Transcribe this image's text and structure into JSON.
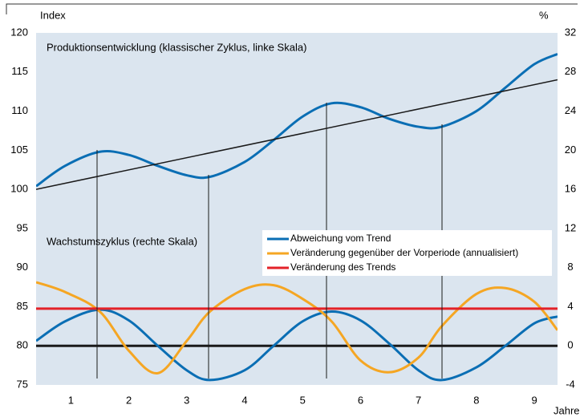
{
  "chart_data": {
    "type": "line",
    "y_label": "Index",
    "y2_label": "%",
    "x_label": "Jahre",
    "annotations": [
      "Produktionsentwicklung (klassischer Zyklus, linke Skala)",
      "Wachstumszyklus (rechte Skala)"
    ],
    "x": [
      0.4,
      0.9,
      1.5,
      2.0,
      2.5,
      3.0,
      3.4,
      4.0,
      4.5,
      5.0,
      5.5,
      6.0,
      6.5,
      7.0,
      7.4,
      8.0,
      8.5,
      9.0,
      9.4
    ],
    "xlim": [
      0.4,
      9.4
    ],
    "xticks": [
      1,
      2,
      3,
      4,
      5,
      6,
      7,
      8,
      9
    ],
    "ylim": [
      75,
      120
    ],
    "yticks": [
      75,
      80,
      85,
      90,
      95,
      100,
      105,
      110,
      115,
      120
    ],
    "y2lim": [
      -4,
      32
    ],
    "y2ticks": [
      -4,
      0,
      4,
      8,
      12,
      16,
      20,
      24,
      28,
      32
    ],
    "zero_line": true,
    "grid": false,
    "series": [
      {
        "color": "#0a6eb4",
        "values": [
          100.4,
          103.0,
          104.8,
          104.4,
          103.0,
          101.8,
          101.6,
          103.5,
          106.3,
          109.3,
          111.0,
          110.5,
          109.0,
          108.0,
          108.0,
          110.0,
          113.0,
          116.0,
          117.3
        ]
      },
      {
        "color": "#1a1a1a",
        "x": [
          0.4,
          9.4
        ],
        "values": [
          100,
          114
        ]
      },
      {
        "name": "Abweichung vom Trend",
        "color": "#0a6eb4",
        "axis": "y2",
        "values": [
          0.5,
          2.5,
          3.7,
          2.6,
          0,
          -2.5,
          -3.5,
          -2.5,
          0,
          2.5,
          3.5,
          2.6,
          0.2,
          -2.5,
          -3.5,
          -2.2,
          0,
          2.3,
          3
        ]
      },
      {
        "name": "Veränderung gegenüber der Vorperiode (annualisiert)",
        "color": "#f5a623",
        "axis": "y2",
        "values": [
          6.5,
          5.5,
          3.5,
          -0.5,
          -2.8,
          0.5,
          3.5,
          5.8,
          6.2,
          4.8,
          2.5,
          -1.5,
          -2.7,
          -1.2,
          2.0,
          5.3,
          5.9,
          4.5,
          1.6
        ]
      },
      {
        "name": "Veränderung des Trends",
        "color": "#e32228",
        "axis": "y2",
        "x": [
          0.4,
          9.4
        ],
        "values": [
          3.8,
          3.8
        ]
      }
    ]
  }
}
